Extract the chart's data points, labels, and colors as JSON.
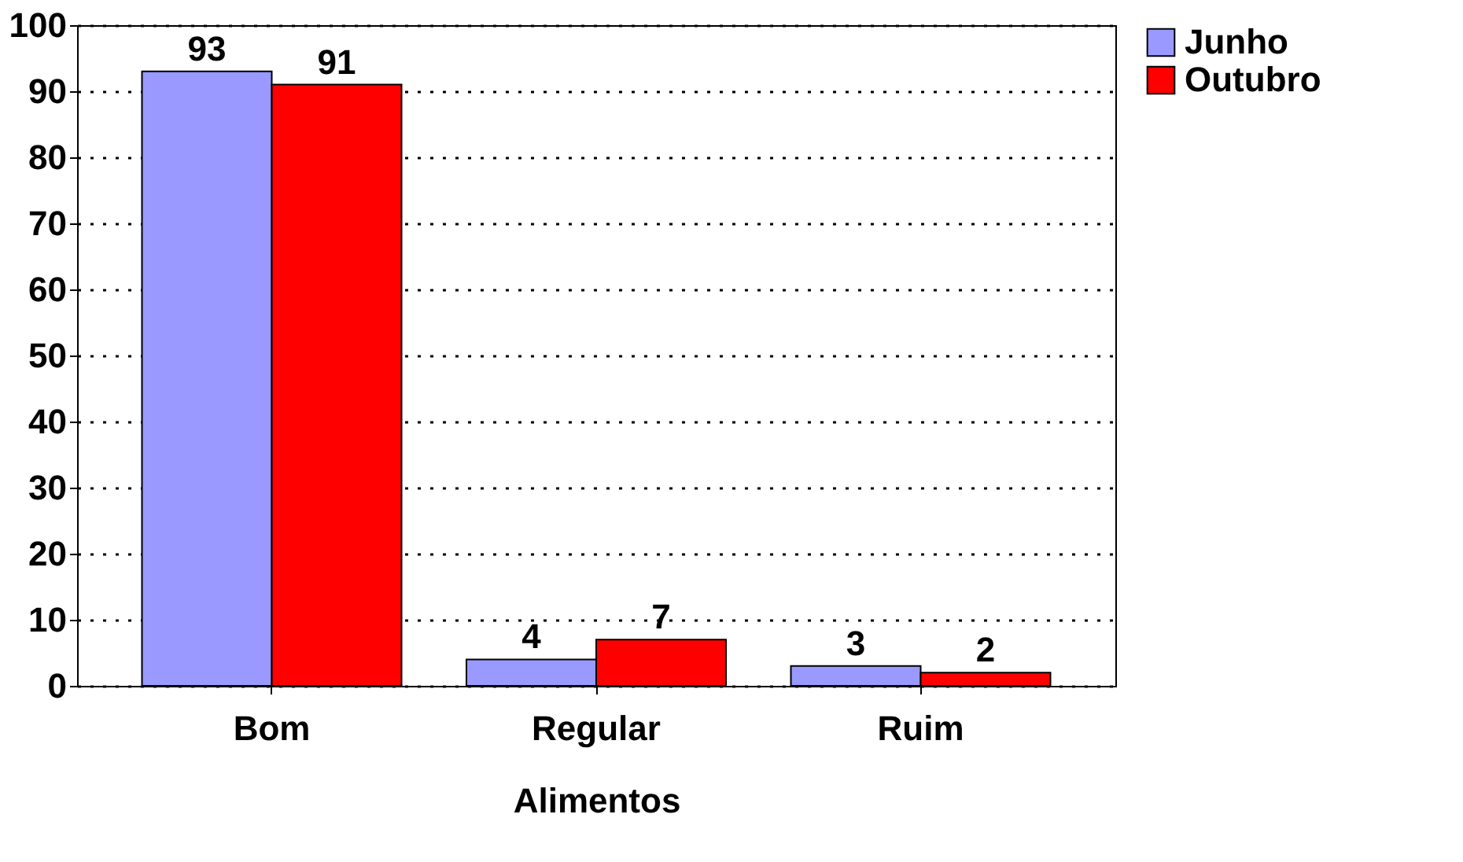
{
  "chart_data": {
    "type": "bar",
    "xlabel": "Alimentos",
    "categories": [
      "Bom",
      "Regular",
      "Ruim"
    ],
    "series": [
      {
        "name": "Junho",
        "color": "#9999ff",
        "values": [
          93,
          4,
          3
        ]
      },
      {
        "name": "Outubro",
        "color": "#ff0000",
        "values": [
          91,
          7,
          2
        ]
      }
    ],
    "ylim": [
      0,
      100
    ],
    "yticks": [
      0,
      10,
      20,
      30,
      40,
      50,
      60,
      70,
      80,
      90,
      100
    ],
    "grid": "y",
    "legend": "top right",
    "data_labels": true
  }
}
